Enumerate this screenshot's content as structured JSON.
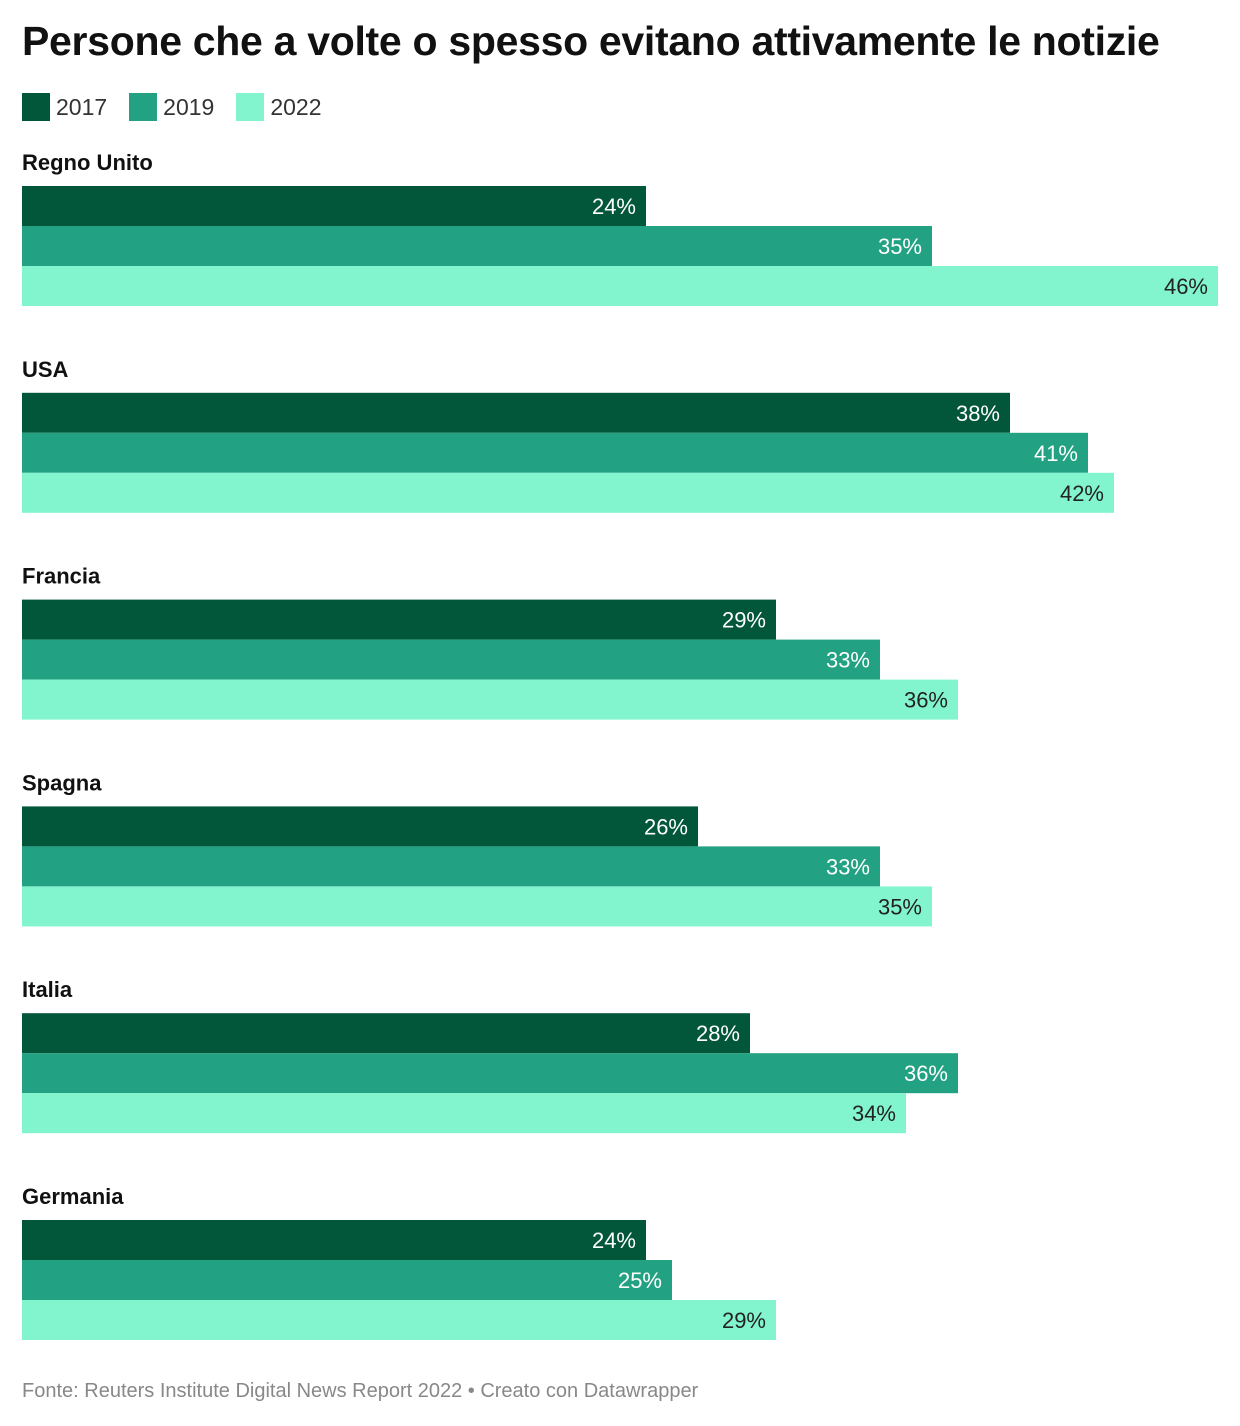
{
  "title": "Persone che a volte o spesso evitano attivamente le notizie",
  "source": "Fonte: Reuters Institute Digital News Report 2022 • Creato con Datawrapper",
  "chart_data": {
    "type": "bar",
    "orientation": "horizontal",
    "title": "Persone che a volte o spesso evitano attivamente le notizie",
    "categories": [
      "Regno Unito",
      "USA",
      "Francia",
      "Spagna",
      "Italia",
      "Germania"
    ],
    "series": [
      {
        "name": "2017",
        "color": "#02573a",
        "label_color": "#ffffff",
        "values": [
          24,
          38,
          29,
          26,
          28,
          24
        ]
      },
      {
        "name": "2019",
        "color": "#22a183",
        "label_color": "#ffffff",
        "values": [
          35,
          41,
          33,
          33,
          36,
          25
        ]
      },
      {
        "name": "2022",
        "color": "#82f5cf",
        "label_color": "#222222",
        "values": [
          46,
          42,
          36,
          35,
          34,
          29
        ]
      }
    ],
    "value_suffix": "%",
    "xlim": [
      0,
      46
    ],
    "grid": false,
    "legend": "top-left"
  }
}
